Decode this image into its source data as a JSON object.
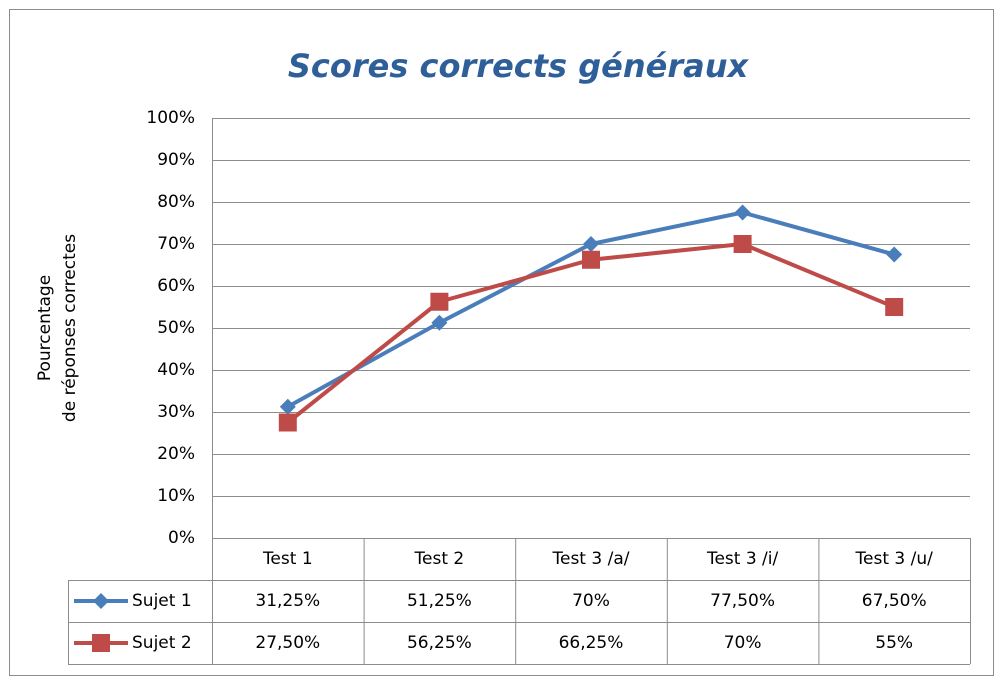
{
  "chart_data": {
    "type": "line",
    "title": "Scores corrects généraux",
    "y_label": [
      "Pourcentage",
      "de réponses correctes"
    ],
    "categories": [
      "Test 1",
      "Test 2",
      "Test 3 /a/",
      "Test 3 /i/",
      "Test 3 /u/"
    ],
    "series": [
      {
        "name": "Sujet 1",
        "color": "#4a7ebb",
        "marker": "diamond",
        "values": [
          31.25,
          51.25,
          70,
          77.5,
          67.5
        ],
        "value_labels": [
          "31,25%",
          "51,25%",
          "70%",
          "77,50%",
          "67,50%"
        ]
      },
      {
        "name": "Sujet 2",
        "color": "#be4b48",
        "marker": "square",
        "values": [
          27.5,
          56.25,
          66.25,
          70,
          55
        ],
        "value_labels": [
          "27,50%",
          "56,25%",
          "66,25%",
          "70%",
          "55%"
        ]
      }
    ],
    "ylim": [
      0,
      100
    ],
    "yticks": [
      {
        "value": 0,
        "label": "0%"
      },
      {
        "value": 10,
        "label": "10%"
      },
      {
        "value": 20,
        "label": "20%"
      },
      {
        "value": 30,
        "label": "30%"
      },
      {
        "value": 40,
        "label": "40%"
      },
      {
        "value": 50,
        "label": "50%"
      },
      {
        "value": 60,
        "label": "60%"
      },
      {
        "value": 70,
        "label": "70%"
      },
      {
        "value": 80,
        "label": "80%"
      },
      {
        "value": 90,
        "label": "90%"
      },
      {
        "value": 100,
        "label": "100%"
      }
    ],
    "grid": true
  }
}
